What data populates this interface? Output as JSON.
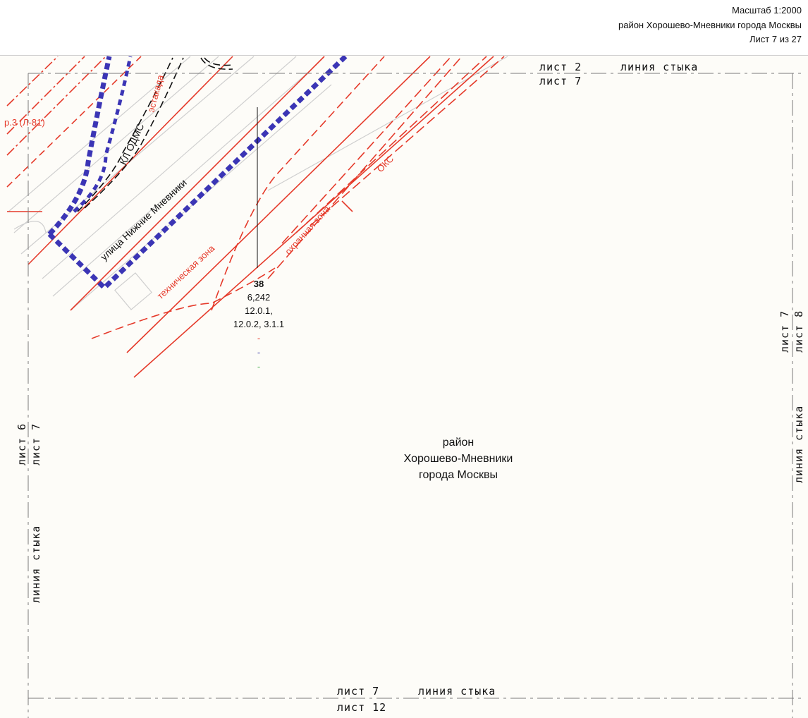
{
  "header": {
    "scale": "Масштаб 1:2000",
    "district": "район Хорошево-Мневники города Москвы",
    "sheet": "Лист 7 из 27"
  },
  "junctions": {
    "top": {
      "sheet_a": "лист 2",
      "sheet_b": "лист 7",
      "label": "линия стыка"
    },
    "bottom": {
      "sheet_a": "лист 7",
      "sheet_b": "лист 12",
      "label": "линия стыка"
    },
    "left": {
      "sheet_a": "лист 6",
      "sheet_b": "лист 7",
      "label": "линия стыка"
    },
    "right": {
      "sheet_a": "лист 7",
      "sheet_b": "лист 8",
      "label": "линия стыка"
    }
  },
  "map_labels": {
    "street": "улица Нижние Мневники",
    "kl_odms": "КЛ ОДМС",
    "overpass": "эстакада",
    "road_code": "р.3 (Л-81)",
    "tech_zone": "техническая зона",
    "security_zone": "охранная зона",
    "oks": "ОКС"
  },
  "parcel": {
    "number": "38",
    "area": "6,242",
    "codes_line1": "12.0.1,",
    "codes_line2": "12.0.2, 3.1.1",
    "marks": [
      {
        "text": "-",
        "color": "#e53a2a"
      },
      {
        "text": "-",
        "color": "#3a3aa8"
      },
      {
        "text": "-",
        "color": "#4caf50"
      }
    ]
  },
  "district_label": {
    "line1": "район",
    "line2": "Хорошево-Мневники",
    "line3": "города Москвы"
  },
  "colors": {
    "boundary": "#3b35b5",
    "red_lines": "#e53a2a",
    "background": "#fdfcf8"
  }
}
